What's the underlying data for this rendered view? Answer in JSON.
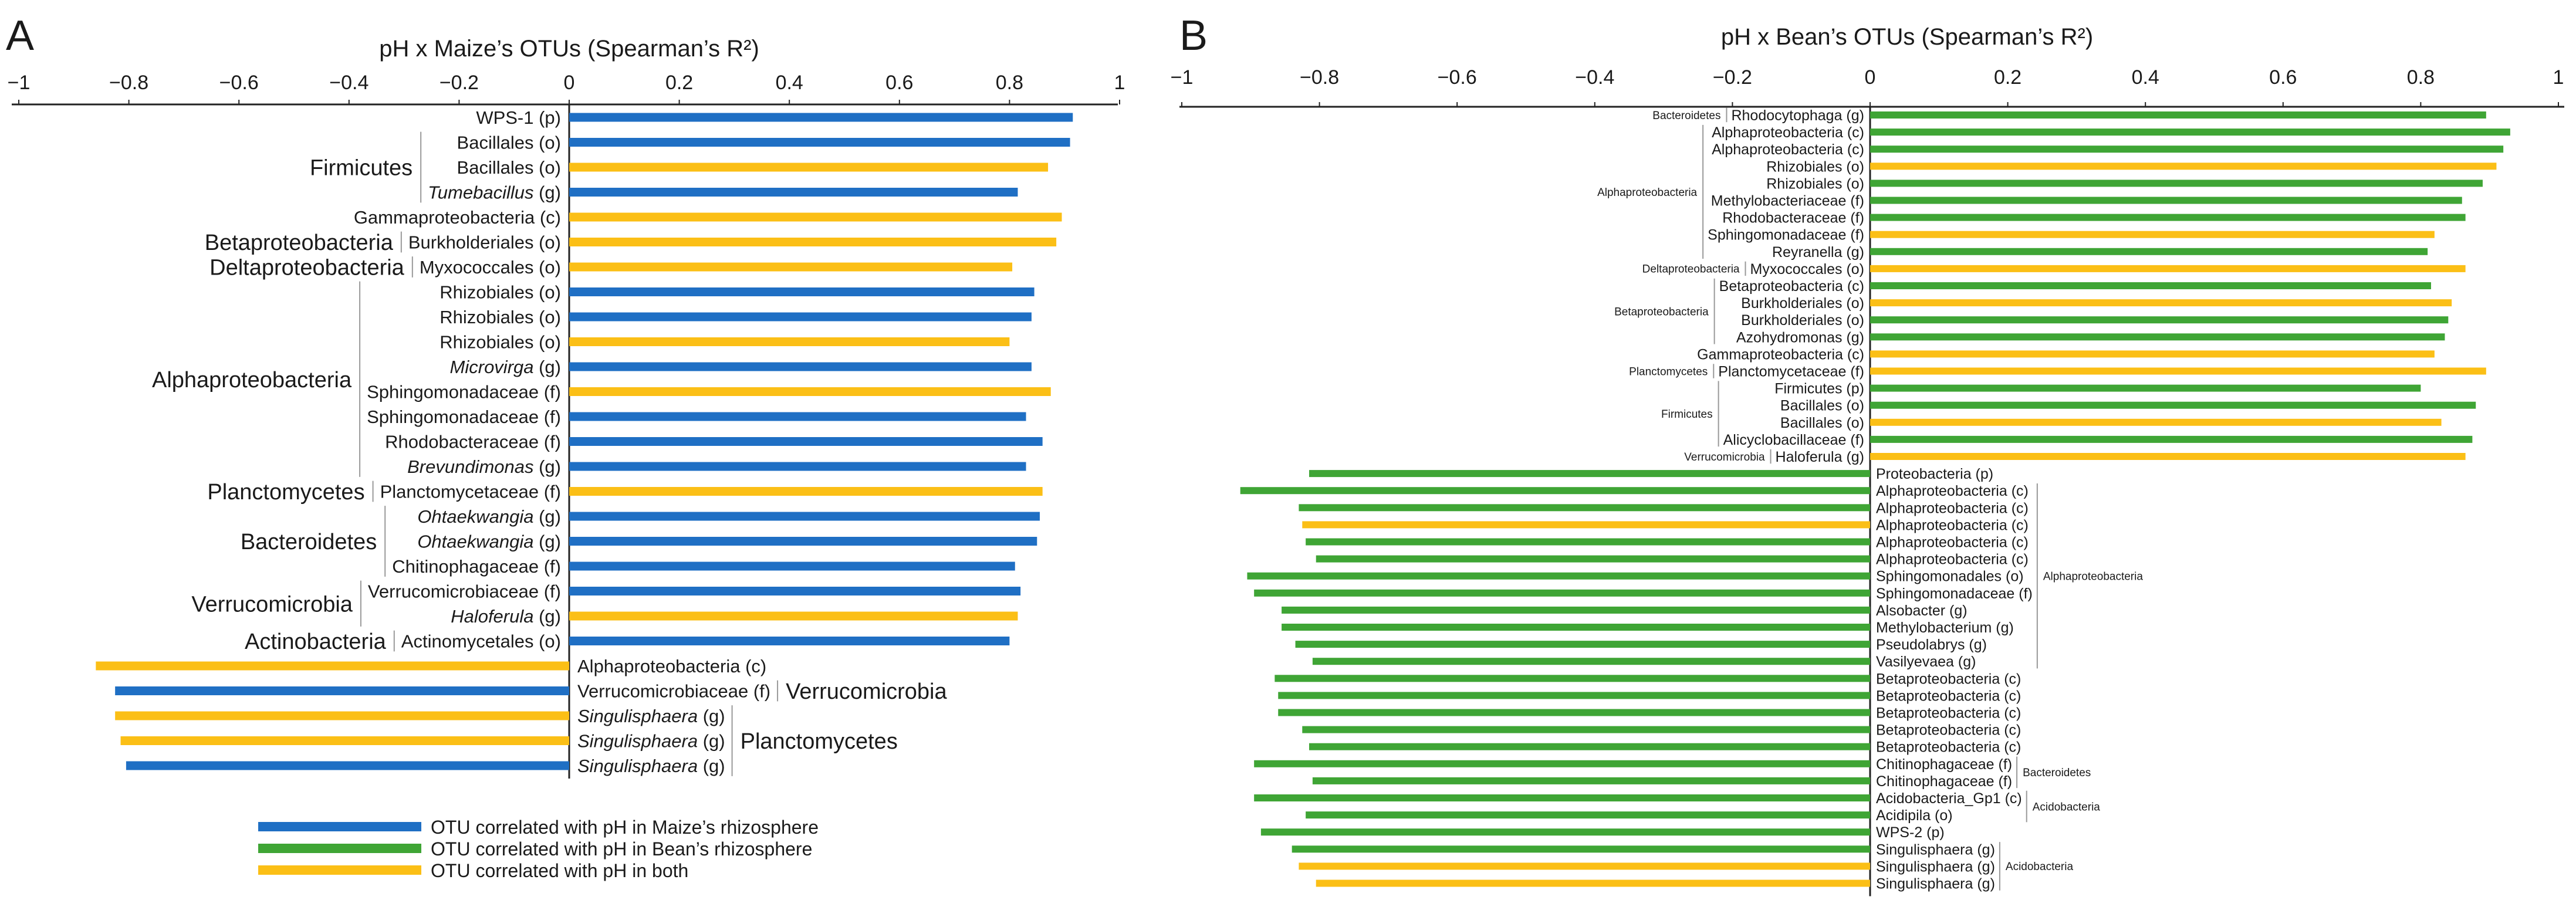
{
  "colors": {
    "maize": "#1f6fc4",
    "bean": "#3fa535",
    "both": "#fbbf16",
    "axis": "#222222",
    "bracket": "#999999"
  },
  "chart_data": [
    {
      "type": "bar",
      "panel_label": "A",
      "title": "pH x Maize’s OTUs (Spearman’s R²)",
      "xlim": [
        -1,
        1
      ],
      "ticks": [
        "−1",
        "−0.8",
        "−0.6",
        "−0.4",
        "−0.2",
        "0",
        "0.2",
        "0.4",
        "0.6",
        "0.8",
        "1"
      ],
      "bars": [
        {
          "label": "WPS-1 (p)",
          "value": 0.915,
          "group": "maize"
        },
        {
          "label": "Bacillales (o)",
          "value": 0.91,
          "group": "maize"
        },
        {
          "label": "Bacillales (o)",
          "value": 0.87,
          "group": "both"
        },
        {
          "label": "Tumebacillus",
          "suffix": " (g)",
          "value": 0.815,
          "group": "maize"
        },
        {
          "label": "Gammaproteobacteria (c)",
          "value": 0.895,
          "group": "both"
        },
        {
          "label": "Burkholderiales (o)",
          "value": 0.885,
          "group": "both"
        },
        {
          "label": "Myxococcales (o)",
          "value": 0.805,
          "group": "both"
        },
        {
          "label": "Rhizobiales (o)",
          "value": 0.845,
          "group": "maize"
        },
        {
          "label": "Rhizobiales (o)",
          "value": 0.84,
          "group": "maize"
        },
        {
          "label": "Rhizobiales (o)",
          "value": 0.8,
          "group": "both"
        },
        {
          "label": "Microvirga",
          "suffix": " (g)",
          "value": 0.84,
          "group": "maize"
        },
        {
          "label": "Sphingomonadaceae (f)",
          "value": 0.875,
          "group": "both"
        },
        {
          "label": "Sphingomonadaceae (f)",
          "value": 0.83,
          "group": "maize"
        },
        {
          "label": "Rhodobacteraceae (f)",
          "value": 0.86,
          "group": "maize"
        },
        {
          "label": "Brevundimonas",
          "suffix": " (g)",
          "value": 0.83,
          "group": "maize"
        },
        {
          "label": "Planctomycetaceae (f)",
          "value": 0.86,
          "group": "both"
        },
        {
          "label": "Ohtaekwangia",
          "suffix": " (g)",
          "value": 0.855,
          "group": "maize"
        },
        {
          "label": "Ohtaekwangia",
          "suffix": " (g)",
          "value": 0.85,
          "group": "maize"
        },
        {
          "label": "Chitinophagaceae (f)",
          "value": 0.81,
          "group": "maize"
        },
        {
          "label": "Verrucomicrobiaceae (f)",
          "value": 0.82,
          "group": "maize"
        },
        {
          "label": "Haloferula",
          "suffix": " (g)",
          "value": 0.815,
          "group": "both"
        },
        {
          "label": "Actinomycetales (o)",
          "value": 0.8,
          "group": "maize"
        },
        {
          "label": "Alphaproteobacteria (c)",
          "value": -0.86,
          "group": "both"
        },
        {
          "label": "Verrucomicrobiaceae (f)",
          "value": -0.825,
          "group": "maize"
        },
        {
          "label": "Singulisphaera",
          "suffix": " (g)",
          "value": -0.825,
          "group": "both"
        },
        {
          "label": "Singulisphaera",
          "suffix": " (g)",
          "value": -0.815,
          "group": "both"
        },
        {
          "label": "Singulisphaera",
          "suffix": " (g)",
          "value": -0.805,
          "group": "maize"
        }
      ],
      "italic_labels": [
        "Tumebacillus",
        "Microvirga",
        "Brevundimonas",
        "Ohtaekwangia",
        "Haloferula",
        "Singulisphaera"
      ],
      "groups": [
        {
          "name": "Firmicutes",
          "start": 1,
          "end": 3
        },
        {
          "name": "Betaproteobacteria",
          "start": 5,
          "end": 5
        },
        {
          "name": "Deltaproteobacteria",
          "start": 6,
          "end": 6
        },
        {
          "name": "Alphaproteobacteria",
          "start": 7,
          "end": 14
        },
        {
          "name": "Planctomycetes",
          "start": 15,
          "end": 15
        },
        {
          "name": "Bacteroidetes",
          "start": 16,
          "end": 18
        },
        {
          "name": "Verrucomicrobia",
          "start": 19,
          "end": 20
        },
        {
          "name": "Actinobacteria",
          "start": 21,
          "end": 21
        },
        {
          "name": "Verrucomicrobia",
          "start": 23,
          "end": 23
        },
        {
          "name": "Planctomycetes",
          "start": 24,
          "end": 26
        }
      ]
    },
    {
      "type": "bar",
      "panel_label": "B",
      "title": "pH x Bean’s OTUs (Spearman’s R²)",
      "xlim": [
        -1,
        1
      ],
      "ticks": [
        "−1",
        "−0.8",
        "−0.6",
        "−0.4",
        "−0.2",
        "0",
        "0.2",
        "0.4",
        "0.6",
        "0.8",
        "1"
      ],
      "bars": [
        {
          "label": "Rhodocytophaga (g)",
          "value": 0.895,
          "group": "bean"
        },
        {
          "label": "Alphaproteobacteria (c)",
          "value": 0.93,
          "group": "bean"
        },
        {
          "label": "Alphaproteobacteria (c)",
          "value": 0.92,
          "group": "bean"
        },
        {
          "label": "Rhizobiales (o)",
          "value": 0.91,
          "group": "both"
        },
        {
          "label": "Rhizobiales (o)",
          "value": 0.89,
          "group": "bean"
        },
        {
          "label": "Methylobacteriaceae (f)",
          "value": 0.86,
          "group": "bean"
        },
        {
          "label": "Rhodobacteraceae (f)",
          "value": 0.865,
          "group": "bean"
        },
        {
          "label": "Sphingomonadaceae (f)",
          "value": 0.82,
          "group": "both"
        },
        {
          "label": "Reyranella (g)",
          "value": 0.81,
          "group": "bean"
        },
        {
          "label": "Myxococcales (o)",
          "value": 0.865,
          "group": "both"
        },
        {
          "label": "Betaproteobacteria (c)",
          "value": 0.815,
          "group": "bean"
        },
        {
          "label": "Burkholderiales (o)",
          "value": 0.845,
          "group": "both"
        },
        {
          "label": "Burkholderiales (o)",
          "value": 0.84,
          "group": "bean"
        },
        {
          "label": "Azohydromonas (g)",
          "value": 0.835,
          "group": "bean"
        },
        {
          "label": "Gammaproteobacteria (c)",
          "value": 0.82,
          "group": "both"
        },
        {
          "label": "Planctomycetaceae (f)",
          "value": 0.895,
          "group": "both"
        },
        {
          "label": "Firmicutes (p)",
          "value": 0.8,
          "group": "bean"
        },
        {
          "label": "Bacillales (o)",
          "value": 0.88,
          "group": "bean"
        },
        {
          "label": "Bacillales (o)",
          "value": 0.83,
          "group": "both"
        },
        {
          "label": "Alicyclobacillaceae (f)",
          "value": 0.875,
          "group": "bean"
        },
        {
          "label": "Haloferula (g)",
          "value": 0.865,
          "group": "both"
        },
        {
          "label": "Proteobacteria (p)",
          "value": -0.815,
          "group": "bean"
        },
        {
          "label": "Alphaproteobacteria (c)",
          "value": -0.915,
          "group": "bean"
        },
        {
          "label": "Alphaproteobacteria (c)",
          "value": -0.83,
          "group": "bean"
        },
        {
          "label": "Alphaproteobacteria (c)",
          "value": -0.825,
          "group": "both"
        },
        {
          "label": "Alphaproteobacteria (c)",
          "value": -0.82,
          "group": "bean"
        },
        {
          "label": "Alphaproteobacteria (c)",
          "value": -0.805,
          "group": "bean"
        },
        {
          "label": "Sphingomonadales (o)",
          "value": -0.905,
          "group": "bean"
        },
        {
          "label": "Sphingomonadaceae (f)",
          "value": -0.895,
          "group": "bean"
        },
        {
          "label": "Alsobacter (g)",
          "value": -0.855,
          "group": "bean"
        },
        {
          "label": "Methylobacterium (g)",
          "value": -0.855,
          "group": "bean"
        },
        {
          "label": "Pseudolabrys (g)",
          "value": -0.835,
          "group": "bean"
        },
        {
          "label": "Vasilyevaea (g)",
          "value": -0.81,
          "group": "bean"
        },
        {
          "label": "Betaproteobacteria (c)",
          "value": -0.865,
          "group": "bean"
        },
        {
          "label": "Betaproteobacteria (c)",
          "value": -0.86,
          "group": "bean"
        },
        {
          "label": "Betaproteobacteria (c)",
          "value": -0.86,
          "group": "bean"
        },
        {
          "label": "Betaproteobacteria (c)",
          "value": -0.825,
          "group": "bean"
        },
        {
          "label": "Betaproteobacteria (c)",
          "value": -0.815,
          "group": "bean"
        },
        {
          "label": "Chitinophagaceae (f)",
          "value": -0.895,
          "group": "bean"
        },
        {
          "label": "Chitinophagaceae (f)",
          "value": -0.81,
          "group": "bean"
        },
        {
          "label": "Acidobacteria_Gp1 (c)",
          "value": -0.895,
          "group": "bean"
        },
        {
          "label": "Acidipila (o)",
          "value": -0.82,
          "group": "bean"
        },
        {
          "label": "WPS-2 (p)",
          "value": -0.885,
          "group": "bean"
        },
        {
          "label": "Singulisphaera (g)",
          "value": -0.84,
          "group": "bean"
        },
        {
          "label": "Singulisphaera (g)",
          "value": -0.83,
          "group": "both"
        },
        {
          "label": "Singulisphaera (g)",
          "value": -0.805,
          "group": "both"
        }
      ],
      "groups": [
        {
          "name": "Bacteroidetes",
          "start": 0,
          "end": 0
        },
        {
          "name": "Alphaproteobacteria",
          "start": 1,
          "end": 8
        },
        {
          "name": "Deltaproteobacteria",
          "start": 9,
          "end": 9
        },
        {
          "name": "Betaproteobacteria",
          "start": 10,
          "end": 13
        },
        {
          "name": "Planctomycetes",
          "start": 15,
          "end": 15
        },
        {
          "name": "Firmicutes",
          "start": 16,
          "end": 19
        },
        {
          "name": "Verrucomicrobia",
          "start": 20,
          "end": 20
        },
        {
          "name": "Alphaproteobacteria",
          "start": 22,
          "end": 32
        },
        {
          "name": "Bacteroidetes",
          "start": 38,
          "end": 39
        },
        {
          "name": "Acidobacteria",
          "start": 40,
          "end": 41
        },
        {
          "name": "Acidobacteria",
          "start": 43,
          "end": 45
        }
      ]
    }
  ],
  "legend": [
    {
      "label": "OTU correlated with pH in Maize’s rhizosphere",
      "group": "maize"
    },
    {
      "label": "OTU correlated with pH in Bean’s rhizosphere",
      "group": "bean"
    },
    {
      "label": "OTU correlated with pH in both",
      "group": "both"
    }
  ]
}
